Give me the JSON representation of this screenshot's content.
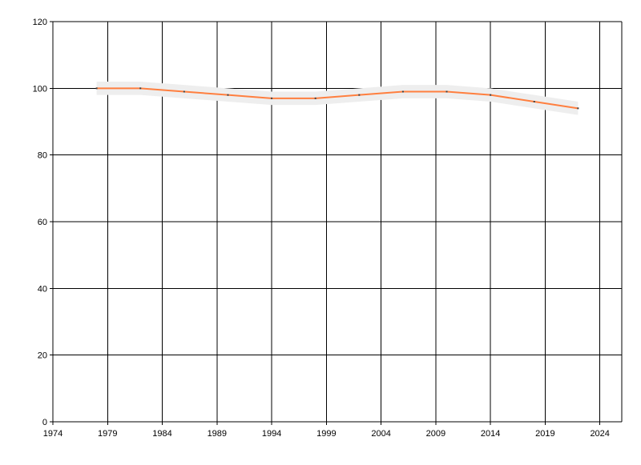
{
  "chart_data": {
    "type": "line",
    "title": "",
    "xlabel": "",
    "ylabel": "",
    "xlim": [
      1974,
      2026
    ],
    "ylim": [
      0,
      120
    ],
    "x_ticks": [
      1974,
      1979,
      1984,
      1989,
      1994,
      1999,
      2004,
      2009,
      2014,
      2019,
      2024
    ],
    "y_ticks": [
      0,
      20,
      40,
      60,
      80,
      100,
      120
    ],
    "grid": true,
    "series": [
      {
        "x": [
          1978,
          1982,
          1986,
          1990,
          1994,
          1998,
          2002,
          2006,
          2010,
          2014,
          2018,
          2022
        ],
        "y": [
          100,
          100,
          99,
          98,
          97,
          97,
          98,
          99,
          99,
          98,
          96,
          94
        ],
        "band": 2,
        "color": "#ff7f3f",
        "band_color": "#eeeeee",
        "marker_color": "#404040"
      }
    ]
  }
}
